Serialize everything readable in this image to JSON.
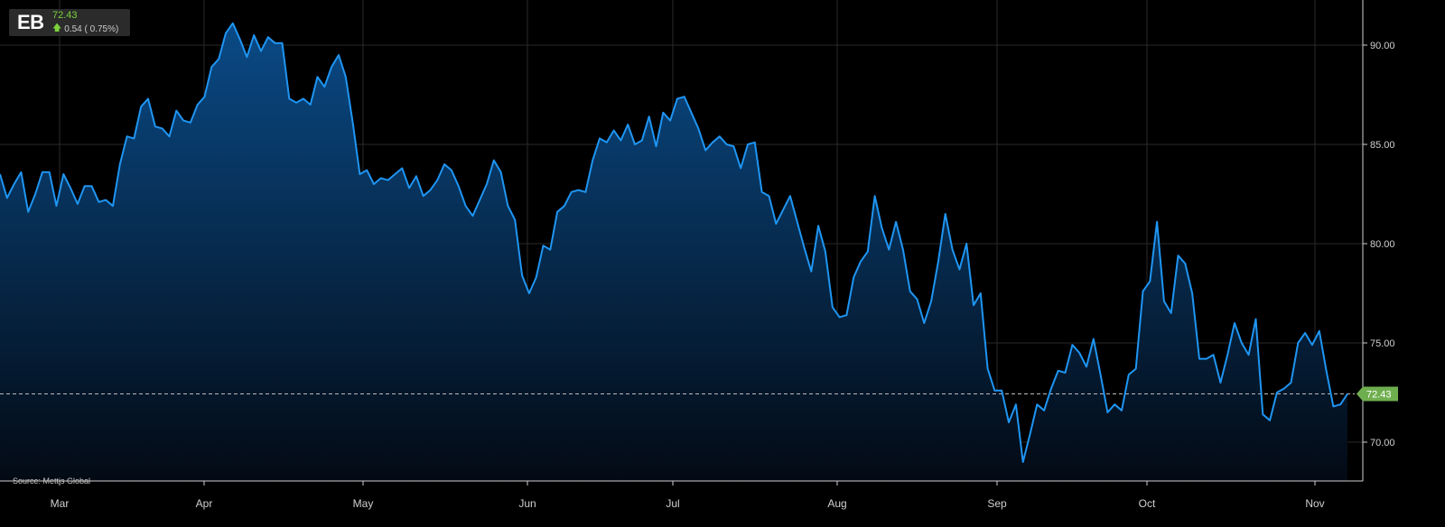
{
  "ticker": {
    "symbol": "EB",
    "price": "72.43",
    "change": "0.54 ( 0.75%)"
  },
  "source": "Source: Mettis Global",
  "colors": {
    "line": "#1f95f2",
    "area_top": "#0a4a86",
    "area_bottom": "#030a14",
    "grid": "#2a2a2a",
    "last_price_badge": "#6fae4f"
  },
  "chart_data": {
    "type": "area",
    "title": "",
    "xlabel": "",
    "ylabel": "",
    "ylim": [
      68,
      92
    ],
    "yticks": [
      "70.00",
      "75.00",
      "80.00",
      "85.00",
      "90.00"
    ],
    "xticks": [
      "Mar",
      "Apr",
      "May",
      "Jun",
      "Jul",
      "Aug",
      "Sep",
      "Oct",
      "Nov"
    ],
    "last_value_label": "72.43",
    "series": [
      {
        "values": [
          83.5,
          82.3,
          83.0,
          83.6,
          81.6,
          82.5,
          83.6,
          83.6,
          81.9,
          83.5,
          82.8,
          82.0,
          82.9,
          82.9,
          82.1,
          82.2,
          81.9,
          84.0,
          85.4,
          85.3,
          86.9,
          87.3,
          85.9,
          85.8,
          85.4,
          86.7,
          86.2,
          86.1,
          87.0,
          87.4,
          88.9,
          89.3,
          90.6,
          91.1,
          90.3,
          89.4,
          90.5,
          89.7,
          90.4,
          90.1,
          90.1,
          87.3,
          87.1,
          87.3,
          87.0,
          88.4,
          87.9,
          88.9,
          89.5,
          88.4,
          86.1,
          83.5,
          83.7,
          83.0,
          83.3,
          83.2,
          83.5,
          83.8,
          82.8,
          83.4,
          82.4,
          82.7,
          83.2,
          84.0,
          83.7,
          82.9,
          81.9,
          81.4,
          82.2,
          83.0,
          84.2,
          83.6,
          81.9,
          81.2,
          78.4,
          77.5,
          78.3,
          79.9,
          79.7,
          81.6,
          81.9,
          82.6,
          82.7,
          82.6,
          84.2,
          85.3,
          85.1,
          85.7,
          85.2,
          86.0,
          85.0,
          85.2,
          86.4,
          84.9,
          86.6,
          86.2,
          87.3,
          87.4,
          86.6,
          85.8,
          84.7,
          85.1,
          85.4,
          85.0,
          84.9,
          83.8,
          85.0,
          85.1,
          82.6,
          82.4,
          81.0,
          81.7,
          82.4,
          81.1,
          79.8,
          78.6,
          80.9,
          79.6,
          76.8,
          76.3,
          76.4,
          78.3,
          79.1,
          79.6,
          82.4,
          80.8,
          79.7,
          81.1,
          79.7,
          77.6,
          77.2,
          76.0,
          77.1,
          79.1,
          81.5,
          79.7,
          78.7,
          80.0,
          76.9,
          77.5,
          73.7,
          72.6,
          72.6,
          71.0,
          71.9,
          69.0,
          70.4,
          71.9,
          71.6,
          72.7,
          73.6,
          73.5,
          74.9,
          74.5,
          73.8,
          75.2,
          73.4,
          71.5,
          71.9,
          71.6,
          73.4,
          73.7,
          77.6,
          78.1,
          81.1,
          77.1,
          76.5,
          79.4,
          79.0,
          77.5,
          74.2,
          74.2,
          74.4,
          73.0,
          74.4,
          76.0,
          75.0,
          74.4,
          76.2,
          71.4,
          71.1,
          72.5,
          72.7,
          73.0,
          75.0,
          75.5,
          74.9,
          75.6,
          73.6,
          71.8,
          71.9,
          72.43
        ]
      }
    ]
  }
}
